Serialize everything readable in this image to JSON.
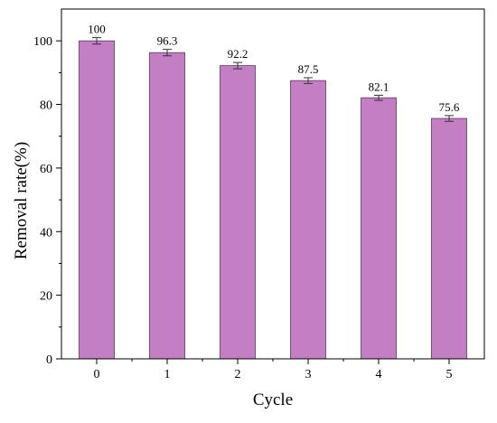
{
  "chart_data": {
    "type": "bar",
    "title": "",
    "xlabel": "Cycle",
    "ylabel": "Removal rate(%)",
    "categories": [
      "0",
      "1",
      "2",
      "3",
      "4",
      "5"
    ],
    "values": [
      100,
      96.3,
      92.2,
      87.5,
      82.1,
      75.6
    ],
    "value_labels": [
      "100",
      "96.3",
      "92.2",
      "87.5",
      "82.1",
      "75.6"
    ],
    "error": [
      1.0,
      1.0,
      1.0,
      0.9,
      0.8,
      0.9
    ],
    "ylim": [
      0,
      110
    ],
    "yticks": [
      "0",
      "20",
      "40",
      "60",
      "80",
      "100"
    ],
    "ytick_values": [
      0,
      20,
      40,
      60,
      80,
      100
    ],
    "grid": false,
    "legend": "none",
    "bar_color": "#c47fc4",
    "bar_edge_color": "#5a3a5a"
  }
}
